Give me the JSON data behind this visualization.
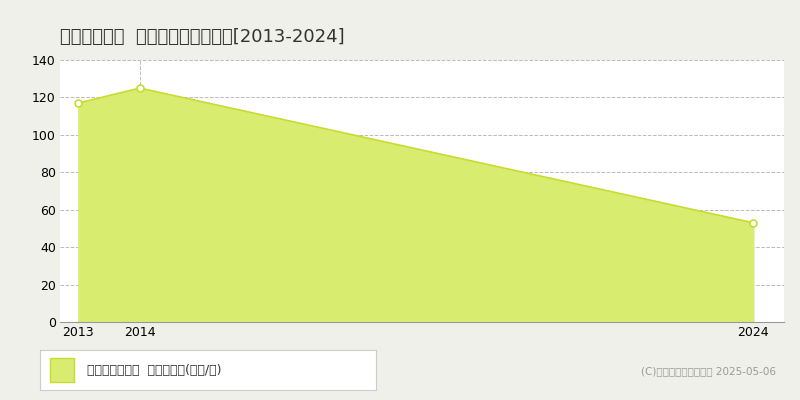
{
  "title": "足利市新山町  マンション価格推移[2013-2024]",
  "years": [
    2013,
    2014,
    2024
  ],
  "values": [
    117,
    125,
    53
  ],
  "line_color": "#c8dc30",
  "fill_color": "#d8ed70",
  "marker_color": "#c8dc30",
  "bg_color": "#f0f0eb",
  "plot_bg_color": "#ffffff",
  "ylim": [
    0,
    140
  ],
  "yticks": [
    0,
    20,
    40,
    60,
    80,
    100,
    120,
    140
  ],
  "grid_color": "#bbbbbb",
  "legend_label": "マンション価格  平均坪単価(万円/坪)",
  "copyright_text": "(C)土地価格ドットコム 2025-05-06",
  "xtick_labels": [
    "2013",
    "2014",
    "2024"
  ],
  "xtick_positions": [
    2013,
    2014,
    2024
  ],
  "xlim": [
    2012.7,
    2024.5
  ],
  "title_fontsize": 13,
  "tick_fontsize": 9,
  "legend_fontsize": 9,
  "vline_x": 2014
}
